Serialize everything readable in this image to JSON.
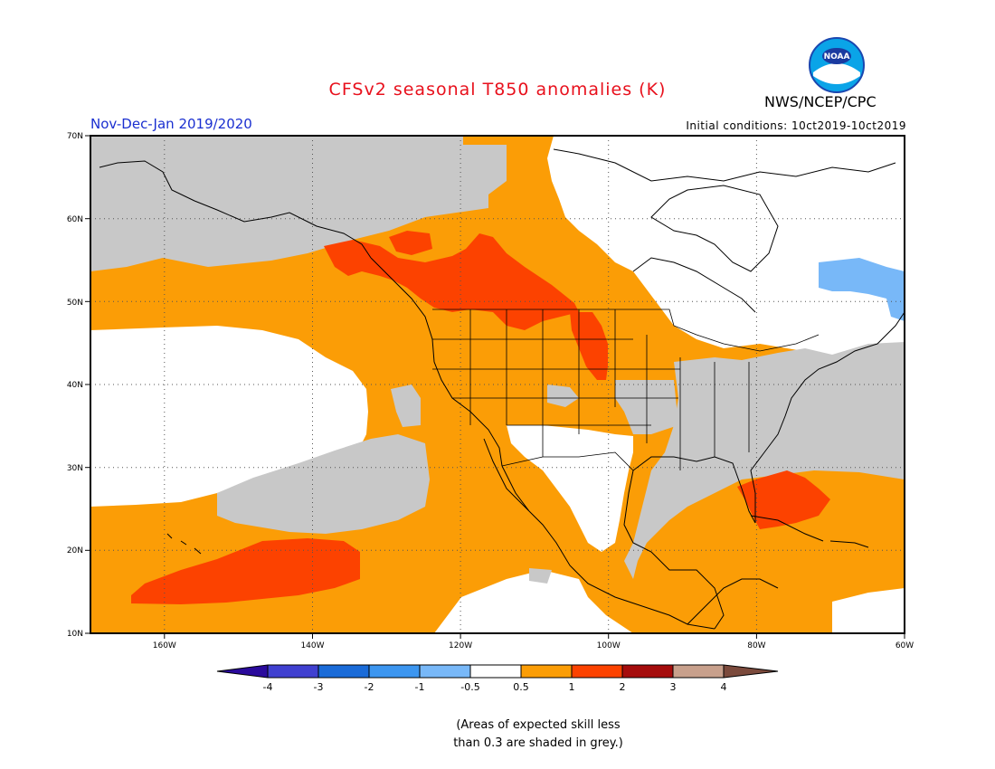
{
  "header": {
    "title": "CFSv2 seasonal T850 anomalies (K)",
    "season": "Nov-Dec-Jan 2019/2020",
    "initial_conditions": "Initial conditions: 10ct2019-10ct2019",
    "agency": "NWS/NCEP/CPC",
    "logo_text": "NOAA"
  },
  "map": {
    "projection": "cylindrical equidistant",
    "lon_range": [
      -171,
      -60
    ],
    "lat_range": [
      10,
      70
    ],
    "lat_labels": [
      "70N",
      "60N",
      "50N",
      "40N",
      "30N",
      "20N",
      "10N"
    ],
    "lon_labels": [
      "160W",
      "140W",
      "120W",
      "100W",
      "80W",
      "60W"
    ],
    "regions": [
      {
        "category": "1 to 2",
        "area": "Central Pacific near Hawaii"
      },
      {
        "category": "1 to 2",
        "area": "Pacific Northwest / British Columbia"
      },
      {
        "category": "1 to 2",
        "area": "Northern Rockies / Canadian Prairies"
      },
      {
        "category": "1 to 2",
        "area": "Northern Plains (Nebraska)"
      },
      {
        "category": "1 to 2",
        "area": "Southern Florida / Bahamas"
      },
      {
        "category": "-1 to -0.5",
        "area": "Labrador / Gulf of St. Lawrence"
      },
      {
        "category": "0.5 to 1",
        "area": "Western US, Northeast Pacific, Gulf of Mexico, Caribbean"
      },
      {
        "category": "-0.5 to 0.5",
        "area": "Eastern Canada, Mexico, Subtropical Pacific"
      },
      {
        "category": "low skill (grey)",
        "area": "Alaska, Eastern US, Gulf states, Atlantic"
      }
    ]
  },
  "legend": {
    "labels": [
      "-4",
      "-3",
      "-2",
      "-1",
      "-0.5",
      "0.5",
      "1",
      "2",
      "3",
      "4"
    ],
    "colors": {
      "lt_m4": "#2a0a9c",
      "m4_m3": "#4040d0",
      "m3_m2": "#1a6bd8",
      "m2_m1": "#3c96f0",
      "m1_m05": "#78b8f8",
      "m05_05": "#ffffff",
      "p05_1": "#fb9d06",
      "p1_2": "#fc4200",
      "p2_3": "#a50c0c",
      "p3_4": "#c8a08c",
      "gt_4": "#7b4a3c"
    },
    "grey": "#c8c8c8"
  },
  "footnote": {
    "line1": "(Areas of expected skill less",
    "line2": "than 0.3 are shaded in grey.)"
  }
}
